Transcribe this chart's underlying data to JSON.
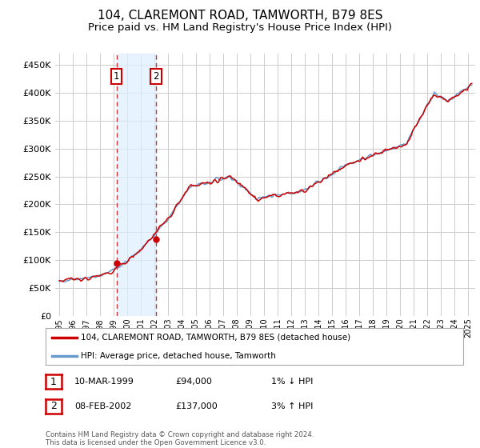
{
  "title": "104, CLAREMONT ROAD, TAMWORTH, B79 8ES",
  "subtitle": "Price paid vs. HM Land Registry's House Price Index (HPI)",
  "ylim": [
    0,
    470000
  ],
  "yticks": [
    0,
    50000,
    100000,
    150000,
    200000,
    250000,
    300000,
    350000,
    400000,
    450000
  ],
  "sale1_date_num": 1999.19,
  "sale1_price": 94000,
  "sale2_date_num": 2002.1,
  "sale2_price": 137000,
  "legend_line1": "104, CLAREMONT ROAD, TAMWORTH, B79 8ES (detached house)",
  "legend_line2": "HPI: Average price, detached house, Tamworth",
  "table_row1_num": "1",
  "table_row1_date": "10-MAR-1999",
  "table_row1_price": "£94,000",
  "table_row1_hpi": "1% ↓ HPI",
  "table_row2_num": "2",
  "table_row2_date": "08-FEB-2002",
  "table_row2_price": "£137,000",
  "table_row2_hpi": "3% ↑ HPI",
  "footnote": "Contains HM Land Registry data © Crown copyright and database right 2024.\nThis data is licensed under the Open Government Licence v3.0.",
  "line_color_red": "#cc0000",
  "line_color_blue": "#6699cc",
  "sale_color_red": "#cc0000",
  "vline_color": "#cc3333",
  "shade_color": "#ddeeff",
  "background_color": "#ffffff",
  "grid_color": "#cccccc",
  "xtick_start": 1995,
  "xtick_end": 2025,
  "title_fontsize": 11,
  "subtitle_fontsize": 9.5
}
